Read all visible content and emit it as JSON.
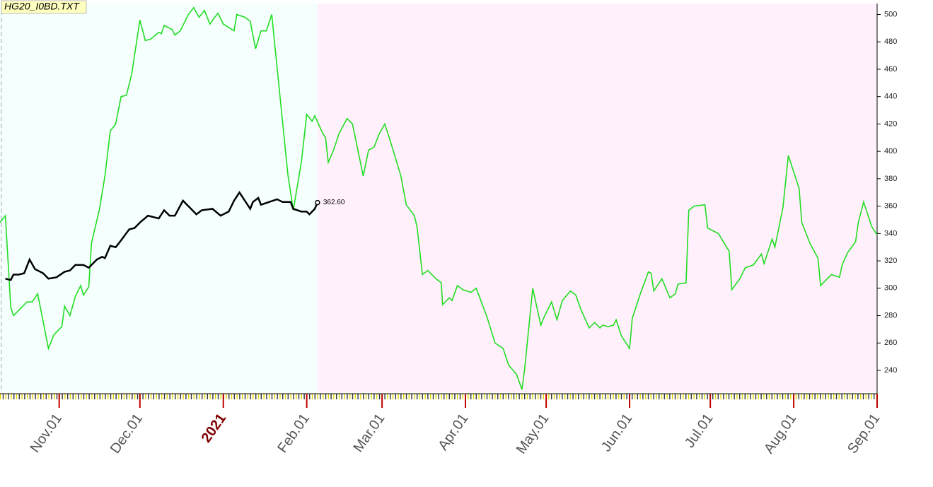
{
  "chart_data": {
    "type": "line",
    "title": "HG20_I0BD.TXT",
    "xlim": [
      0,
      326
    ],
    "xticks": [
      {
        "value": 22,
        "label": "Nov.01"
      },
      {
        "value": 52,
        "label": "Dec.01"
      },
      {
        "value": 83,
        "label": "2021",
        "color": "#800000"
      },
      {
        "value": 114,
        "label": "Feb.01"
      },
      {
        "value": 142,
        "label": "Mar.01"
      },
      {
        "value": 173,
        "label": "Apr.01"
      },
      {
        "value": 203,
        "label": "May.01"
      },
      {
        "value": 234,
        "label": "Jun.01"
      },
      {
        "value": 264,
        "label": "Jul.01"
      },
      {
        "value": 295,
        "label": "Aug.01"
      },
      {
        "value": 326,
        "label": "Sep.01"
      }
    ],
    "ylim": [
      224,
      508
    ],
    "yticks": [
      240,
      260,
      280,
      300,
      320,
      340,
      360,
      380,
      400,
      420,
      440,
      460,
      480,
      500
    ],
    "series": [
      {
        "color": "#22dd22",
        "x": [
          0,
          2,
          4,
          5,
          8,
          10,
          12,
          14,
          18,
          20,
          23,
          24,
          26,
          28,
          30,
          31,
          33,
          34,
          37,
          39,
          41,
          43,
          45,
          47,
          49,
          52,
          54,
          56,
          59,
          60,
          61,
          64,
          65,
          67,
          70,
          72,
          74,
          76,
          78,
          81,
          83,
          87,
          88,
          91,
          93,
          95,
          97,
          99,
          101,
          107,
          109,
          112,
          114,
          116,
          117,
          120,
          121,
          122,
          124,
          126,
          129,
          131,
          135,
          137,
          139,
          141,
          143,
          145,
          149,
          151,
          154,
          155,
          157,
          159,
          162,
          164,
          164.5,
          167,
          168,
          170,
          172,
          175,
          177,
          181,
          184,
          187,
          189,
          192,
          194,
          195,
          198,
          201,
          202,
          205,
          207,
          209,
          212,
          214,
          216,
          219,
          221,
          223,
          224,
          226,
          228,
          229,
          231,
          234,
          235,
          238,
          241,
          242,
          243,
          246,
          249,
          251,
          252,
          255,
          256,
          258,
          262,
          263,
          267,
          271,
          272,
          275,
          277,
          280,
          283,
          284,
          287,
          288,
          291,
          293,
          297,
          298,
          301,
          304,
          305,
          309,
          312,
          313,
          315,
          318,
          319,
          321,
          324,
          326
        ],
        "values": [
          348,
          353,
          286,
          280,
          286,
          290,
          290,
          296,
          256,
          266,
          272,
          287,
          280,
          294,
          302,
          295,
          301,
          333,
          358,
          382,
          415,
          420,
          440,
          441,
          457,
          496,
          481,
          482,
          487,
          486,
          492,
          489,
          485,
          488,
          500,
          505,
          498,
          503,
          493,
          501,
          493,
          488,
          500,
          498,
          495,
          475,
          488,
          488,
          500,
          383,
          357,
          392,
          427,
          422,
          426,
          413,
          410,
          392,
          401,
          413,
          424,
          420,
          382,
          401,
          403,
          413,
          420,
          408,
          382,
          361,
          353,
          345,
          310,
          313,
          307,
          304,
          288,
          293,
          291,
          302,
          299,
          297,
          300,
          279,
          260,
          256,
          244,
          237,
          226,
          241,
          300,
          273,
          278,
          290,
          277,
          291,
          298,
          295,
          284,
          271,
          275,
          271,
          273,
          272,
          273,
          277,
          265,
          256,
          278,
          296,
          312,
          311,
          298,
          307,
          293,
          296,
          303,
          304,
          357,
          360,
          361,
          344,
          340,
          327,
          299,
          307,
          315,
          317,
          325,
          318,
          336,
          330,
          359,
          397,
          373,
          348,
          333,
          322,
          302,
          310,
          308,
          317,
          326,
          334,
          348,
          363,
          345,
          339
        ]
      },
      {
        "color": "#000000",
        "x": [
          2,
          4,
          5,
          7,
          9,
          11,
          13,
          16,
          18,
          21,
          24,
          26,
          28,
          31,
          33,
          36,
          38,
          39,
          41,
          43,
          45,
          48,
          50,
          52,
          55,
          59,
          61,
          63,
          65,
          68,
          71,
          73,
          75,
          79,
          82,
          85,
          87,
          89,
          91,
          93,
          94,
          96,
          97,
          103,
          105,
          108,
          109,
          112,
          114,
          115,
          117,
          118
        ],
        "values": [
          307,
          306,
          310,
          310,
          311,
          321,
          314,
          311,
          307,
          308,
          312,
          313,
          317,
          317,
          315,
          321,
          323,
          322,
          331,
          330,
          335,
          343,
          344,
          348,
          353,
          351,
          357,
          353,
          353,
          364,
          358,
          354,
          357,
          358,
          353,
          356,
          364,
          370,
          364,
          358,
          363,
          366,
          361,
          365,
          363,
          363,
          358,
          356,
          356,
          354,
          358,
          362.6
        ],
        "value_labels": [
          null,
          null,
          null,
          null,
          null,
          null,
          null,
          null,
          null,
          null,
          null,
          null,
          null,
          null,
          null,
          null,
          null,
          null,
          null,
          null,
          null,
          null,
          null,
          null,
          null,
          null,
          null,
          null,
          null,
          null,
          null,
          null,
          null,
          null,
          null,
          null,
          null,
          null,
          null,
          null,
          null,
          null,
          null,
          null,
          null,
          null,
          null,
          null,
          null,
          null,
          null,
          "362.60"
        ]
      }
    ]
  }
}
